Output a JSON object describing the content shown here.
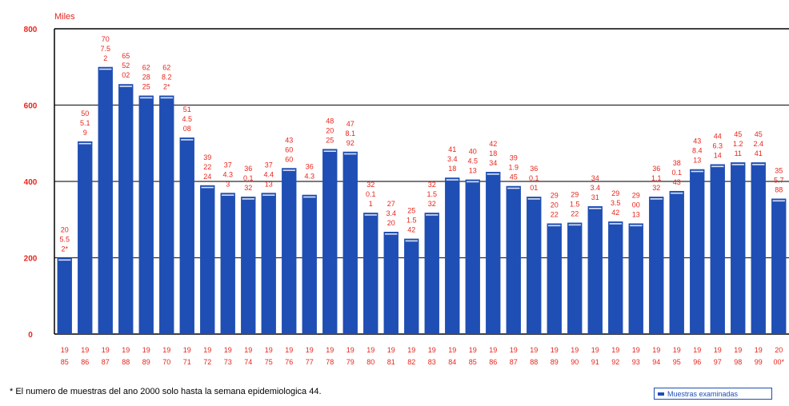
{
  "chart_data": {
    "type": "bar",
    "ylabel": "Miles",
    "ylim": [
      0,
      800
    ],
    "yticks": [
      "0",
      "200",
      "400",
      "600",
      "800"
    ],
    "grid": true,
    "categories": [
      {
        "a": "19",
        "b": "85"
      },
      {
        "a": "19",
        "b": "86"
      },
      {
        "a": "19",
        "b": "87"
      },
      {
        "a": "19",
        "b": "88"
      },
      {
        "a": "19",
        "b": "89"
      },
      {
        "a": "19",
        "b": "70"
      },
      {
        "a": "19",
        "b": "71"
      },
      {
        "a": "19",
        "b": "72"
      },
      {
        "a": "19",
        "b": "73"
      },
      {
        "a": "19",
        "b": "74"
      },
      {
        "a": "19",
        "b": "75"
      },
      {
        "a": "19",
        "b": "76"
      },
      {
        "a": "19",
        "b": "77"
      },
      {
        "a": "19",
        "b": "78"
      },
      {
        "a": "19",
        "b": "79"
      },
      {
        "a": "19",
        "b": "80"
      },
      {
        "a": "19",
        "b": "81"
      },
      {
        "a": "19",
        "b": "82"
      },
      {
        "a": "19",
        "b": "83"
      },
      {
        "a": "19",
        "b": "84"
      },
      {
        "a": "19",
        "b": "85"
      },
      {
        "a": "19",
        "b": "86"
      },
      {
        "a": "19",
        "b": "87"
      },
      {
        "a": "19",
        "b": "88"
      },
      {
        "a": "19",
        "b": "89"
      },
      {
        "a": "19",
        "b": "90"
      },
      {
        "a": "19",
        "b": "91"
      },
      {
        "a": "19",
        "b": "92"
      },
      {
        "a": "19",
        "b": "93"
      },
      {
        "a": "19",
        "b": "94"
      },
      {
        "a": "19",
        "b": "95"
      },
      {
        "a": "19",
        "b": "96"
      },
      {
        "a": "19",
        "b": "97"
      },
      {
        "a": "19",
        "b": "98"
      },
      {
        "a": "19",
        "b": "99"
      },
      {
        "a": "20",
        "b": "00*"
      }
    ],
    "series": [
      {
        "name": "Muestras examinadas",
        "values": [
          200,
          505,
          700,
          655,
          625,
          625,
          515,
          390,
          370,
          360,
          370,
          435,
          365,
          485,
          478,
          318,
          268,
          250,
          318,
          410,
          405,
          425,
          388,
          360,
          290,
          292,
          335,
          295,
          290,
          360,
          375,
          432,
          445,
          450,
          450,
          355
        ]
      }
    ],
    "data_labels": [
      [
        "20",
        "5.5",
        "2*"
      ],
      [
        "50",
        "5.1",
        "9"
      ],
      [
        "70",
        "7.5",
        "2"
      ],
      [
        "65",
        "52",
        "02"
      ],
      [
        "62",
        "28",
        "25"
      ],
      [
        "62",
        "8.2",
        "2*"
      ],
      [
        "51",
        "4.5",
        "08"
      ],
      [
        "39",
        "22",
        "24"
      ],
      [
        "37",
        "4.3",
        "3"
      ],
      [
        "36",
        "0.1",
        "32"
      ],
      [
        "37",
        "4.4",
        "13"
      ],
      [
        "43",
        "60",
        "60"
      ],
      [
        "36",
        "4.3",
        ""
      ],
      [
        "48",
        "20",
        "25"
      ],
      [
        "47",
        "8.1",
        "92"
      ],
      [
        "32",
        "0.1",
        "1"
      ],
      [
        "27",
        "3.4",
        "20"
      ],
      [
        "25",
        "1.5",
        "42"
      ],
      [
        "32",
        "1.5",
        "32"
      ],
      [
        "41",
        "3.4",
        "18"
      ],
      [
        "40",
        "4.5",
        "13"
      ],
      [
        "42",
        "18",
        "34"
      ],
      [
        "39",
        "1.9",
        "45"
      ],
      [
        "36",
        "0.1",
        "01"
      ],
      [
        "29",
        "20",
        "22"
      ],
      [
        "29",
        "1.5",
        "22"
      ],
      [
        "34",
        "3.4",
        "31"
      ],
      [
        "29",
        "3.5",
        "42"
      ],
      [
        "29",
        "00",
        "13"
      ],
      [
        "36",
        "1.1",
        "32"
      ],
      [
        "38",
        "0.1",
        "43"
      ],
      [
        "43",
        "8.4",
        "13"
      ],
      [
        "44",
        "6.3",
        "14"
      ],
      [
        "45",
        "1.2",
        "11"
      ],
      [
        "45",
        "2.4",
        "41"
      ],
      [
        "35",
        "5.7",
        "88"
      ]
    ]
  },
  "footnote": "* El numero de muestras del ano 2000 solo hasta la semana epidemiologica 44.",
  "legend": {
    "label": "Muestras examinadas"
  },
  "colors": {
    "bar": "#1f4eb4",
    "label": "#e8251d",
    "axis": "#000000",
    "grid": "#2b2b2b"
  }
}
